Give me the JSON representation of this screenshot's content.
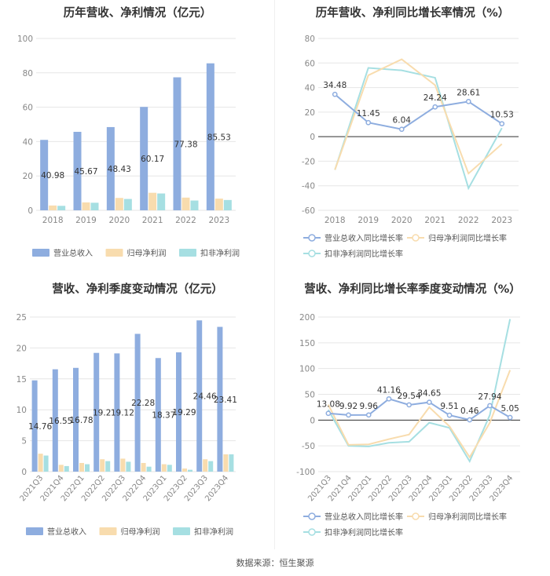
{
  "colors": {
    "revenue": "#8eaddf",
    "net_profit": "#f8dcae",
    "deducted_profit": "#a6dfe2",
    "grid": "#e6e6e6",
    "axis_text": "#888888",
    "label_text": "#333333"
  },
  "footer": "数据来源：恒生聚源",
  "chart_data": [
    {
      "id": "annual_amount",
      "type": "bar",
      "title": "历年营收、净利情况（亿元）",
      "categories": [
        "2018",
        "2019",
        "2020",
        "2021",
        "2022",
        "2023"
      ],
      "series": [
        {
          "name": "营业总收入",
          "values": [
            40.98,
            45.67,
            48.43,
            60.17,
            77.38,
            85.53
          ],
          "show_labels": true
        },
        {
          "name": "归母净利润",
          "values": [
            2.8,
            4.6,
            7.2,
            10.2,
            7.4,
            6.8
          ]
        },
        {
          "name": "扣非净利润",
          "values": [
            2.6,
            4.4,
            6.6,
            9.8,
            5.7,
            6.0
          ]
        }
      ],
      "ylim": [
        0,
        100
      ],
      "yticks": [
        0,
        20,
        40,
        60,
        80,
        100
      ],
      "legend": "bottom",
      "grid": true
    },
    {
      "id": "annual_growth",
      "type": "line",
      "title": "历年营收、净利同比增长率情况（%）",
      "categories": [
        "2018",
        "2019",
        "2020",
        "2021",
        "2022",
        "2023"
      ],
      "series": [
        {
          "name": "营业总收入同比增长率",
          "values": [
            34.48,
            11.45,
            6.04,
            24.24,
            28.61,
            10.53
          ],
          "show_labels": true
        },
        {
          "name": "归母净利润同比增长率",
          "values": [
            -27,
            50,
            63,
            42,
            -30,
            -6
          ]
        },
        {
          "name": "扣非净利润同比增长率",
          "values": [
            -27,
            56,
            54,
            48,
            -42,
            7
          ]
        }
      ],
      "ylim": [
        -60,
        80
      ],
      "yticks": [
        -60,
        -40,
        -20,
        0,
        20,
        40,
        60,
        80
      ],
      "legend": "bottom",
      "grid": true
    },
    {
      "id": "quarterly_amount",
      "type": "bar",
      "title": "营收、净利季度变动情况（亿元）",
      "categories": [
        "2021Q3",
        "2021Q4",
        "2022Q1",
        "2022Q2",
        "2022Q3",
        "2022Q4",
        "2023Q1",
        "2023Q2",
        "2023Q3",
        "2023Q4"
      ],
      "series": [
        {
          "name": "营业总收入",
          "values": [
            14.76,
            16.55,
            16.78,
            19.2,
            19.12,
            22.28,
            18.37,
            19.29,
            24.46,
            23.41
          ],
          "show_labels": true
        },
        {
          "name": "归母净利润",
          "values": [
            2.9,
            1.1,
            1.4,
            2.0,
            2.1,
            1.4,
            1.2,
            0.5,
            2.0,
            2.8
          ]
        },
        {
          "name": "扣非净利润",
          "values": [
            2.6,
            0.9,
            1.2,
            1.7,
            1.6,
            0.8,
            1.1,
            0.3,
            1.7,
            2.8
          ]
        }
      ],
      "ylim": [
        0,
        25
      ],
      "yticks": [
        0,
        5,
        10,
        15,
        20,
        25
      ],
      "legend": "bottom",
      "grid": true
    },
    {
      "id": "quarterly_growth",
      "type": "line",
      "title": "营收、净利同比增长率季度变动情况（%）",
      "categories": [
        "2021Q3",
        "2021Q4",
        "2022Q1",
        "2022Q2",
        "2022Q3",
        "2022Q4",
        "2023Q1",
        "2023Q2",
        "2023Q3",
        "2023Q4"
      ],
      "series": [
        {
          "name": "营业总收入同比增长率",
          "values": [
            13.08,
            9.92,
            9.96,
            41.16,
            29.54,
            34.65,
            9.51,
            0.46,
            27.94,
            5.05
          ],
          "show_labels": true
        },
        {
          "name": "归母净利润同比增长率",
          "values": [
            30,
            -48,
            -47,
            -37,
            -28,
            25,
            -12,
            -72,
            -5,
            97
          ]
        },
        {
          "name": "扣非净利润同比增长率",
          "values": [
            20,
            -50,
            -51,
            -44,
            -42,
            -5,
            -15,
            -80,
            10,
            196
          ]
        }
      ],
      "ylim": [
        -100,
        200
      ],
      "yticks": [
        -100,
        -50,
        0,
        50,
        100,
        150,
        200
      ],
      "legend": "bottom",
      "grid": true
    }
  ]
}
